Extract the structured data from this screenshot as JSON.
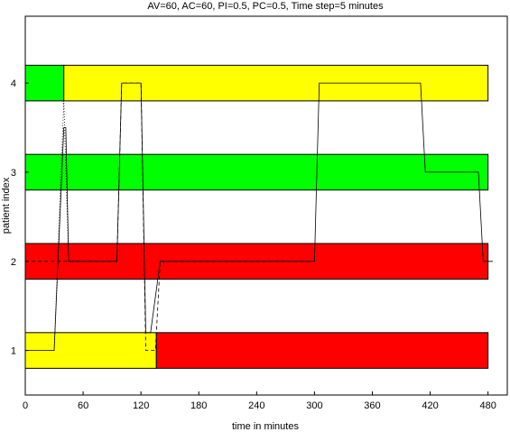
{
  "chart_data": {
    "type": "gantt",
    "title": "AV=60,  AC=60,  PI=0.5,  PC=0.5,  Time step=5 minutes",
    "xlabel": "time in minutes",
    "ylabel": "patient index",
    "xlim": [
      0,
      500
    ],
    "ylim": [
      0.5,
      4.75
    ],
    "xticks": [
      0,
      60,
      120,
      180,
      240,
      300,
      360,
      420,
      480
    ],
    "yticks": [
      1,
      2,
      3,
      4
    ],
    "grid": false,
    "colors": {
      "green": "#00ff00",
      "yellow": "#ffff00",
      "red": "#ff0000"
    },
    "patients": [
      {
        "index": 1,
        "segments": [
          {
            "start": 0,
            "end": 136,
            "color": "yellow"
          },
          {
            "start": 136,
            "end": 480,
            "color": "red"
          }
        ]
      },
      {
        "index": 2,
        "segments": [
          {
            "start": 0,
            "end": 480,
            "color": "red"
          }
        ]
      },
      {
        "index": 3,
        "segments": [
          {
            "start": 0,
            "end": 480,
            "color": "green"
          }
        ]
      },
      {
        "index": 4,
        "segments": [
          {
            "start": 0,
            "end": 40,
            "color": "green"
          },
          {
            "start": 40,
            "end": 480,
            "color": "yellow"
          }
        ]
      }
    ],
    "traces": [
      {
        "style": "solid",
        "points": [
          [
            0,
            1
          ],
          [
            30,
            1
          ],
          [
            40,
            3.5
          ],
          [
            42,
            3.5
          ],
          [
            45,
            2
          ],
          [
            95,
            2
          ],
          [
            100,
            4
          ],
          [
            120,
            4
          ],
          [
            125,
            1.2
          ],
          [
            130,
            1.2
          ],
          [
            140,
            2
          ],
          [
            300,
            2
          ],
          [
            305,
            4
          ],
          [
            410,
            4
          ],
          [
            415,
            3
          ],
          [
            470,
            3
          ],
          [
            475,
            2
          ],
          [
            485,
            2
          ]
        ]
      },
      {
        "style": "dashed",
        "points": [
          [
            0,
            2
          ],
          [
            95,
            2
          ],
          [
            100,
            4
          ],
          [
            120,
            4
          ],
          [
            125,
            1
          ],
          [
            135,
            1
          ],
          [
            140,
            2
          ],
          [
            300,
            2
          ]
        ]
      },
      {
        "style": "dotted",
        "points": [
          [
            30,
            1
          ],
          [
            40,
            3.8
          ],
          [
            45,
            2
          ],
          [
            50,
            2
          ]
        ]
      }
    ]
  }
}
